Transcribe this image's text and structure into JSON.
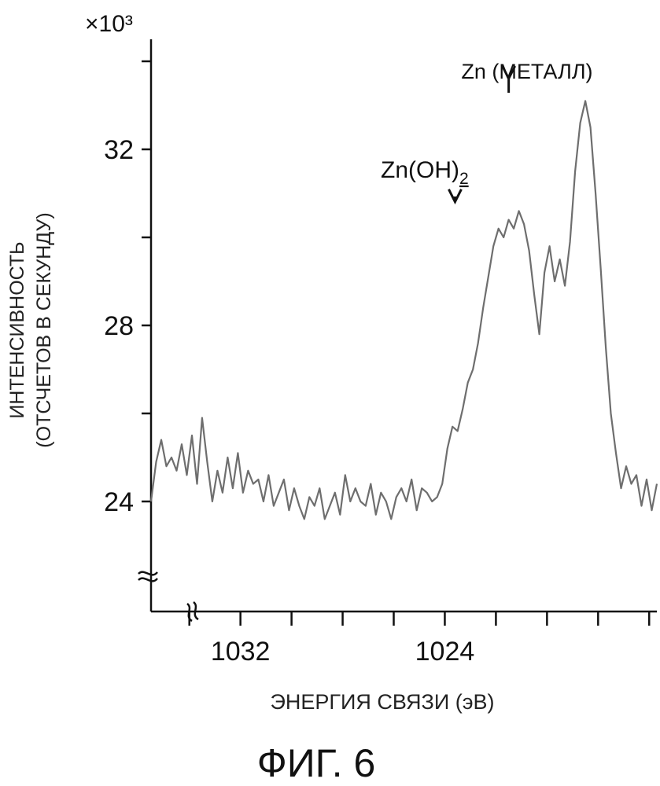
{
  "figure_label": "ФИГ. 6",
  "chart_data": {
    "type": "line",
    "xlabel": "ЭНЕРГИЯ СВЯЗИ (эВ)",
    "ylabel_line1": "ИНТЕНСИВНОСТЬ",
    "ylabel_line2": "(ОТСЧЕТОВ В СЕКУНДУ)",
    "y_multiplier": "×10³",
    "x_reversed": true,
    "xlim": [
      1035.5,
      1015.7
    ],
    "ylim": [
      21.5,
      34.5
    ],
    "x_ticks": [
      1034,
      1032,
      1030,
      1028,
      1026,
      1024,
      1022,
      1020,
      1018,
      1016
    ],
    "x_tick_labels": [
      {
        "value": 1032,
        "label": "1032"
      },
      {
        "value": 1024,
        "label": "1024"
      }
    ],
    "y_ticks": [
      24,
      26,
      28,
      30,
      32,
      34
    ],
    "y_tick_labels": [
      {
        "value": 32,
        "label": "32"
      },
      {
        "value": 28,
        "label": "28"
      },
      {
        "value": 24,
        "label": "24"
      }
    ],
    "axis_breaks": true,
    "grid": false,
    "annotations": [
      {
        "text_main": "Zn(OH)",
        "text_sub": "2",
        "x": 1023.6,
        "arrow_to_y": 30.7
      },
      {
        "text_main": "Zn (МЕТАЛЛ)",
        "text_sub": "",
        "x": 1021.5,
        "arrow_to_y": 33.5
      }
    ],
    "series": [
      {
        "color": "#6e6e6e",
        "points": [
          [
            1035.5,
            24.0
          ],
          [
            1035.3,
            24.9
          ],
          [
            1035.1,
            25.4
          ],
          [
            1034.9,
            24.8
          ],
          [
            1034.7,
            25.0
          ],
          [
            1034.5,
            24.7
          ],
          [
            1034.3,
            25.3
          ],
          [
            1034.1,
            24.6
          ],
          [
            1033.9,
            25.5
          ],
          [
            1033.7,
            24.4
          ],
          [
            1033.5,
            25.9
          ],
          [
            1033.3,
            24.9
          ],
          [
            1033.1,
            24.0
          ],
          [
            1032.9,
            24.7
          ],
          [
            1032.7,
            24.2
          ],
          [
            1032.5,
            25.0
          ],
          [
            1032.3,
            24.3
          ],
          [
            1032.1,
            25.1
          ],
          [
            1031.9,
            24.2
          ],
          [
            1031.7,
            24.7
          ],
          [
            1031.5,
            24.4
          ],
          [
            1031.3,
            24.5
          ],
          [
            1031.1,
            24.0
          ],
          [
            1030.9,
            24.6
          ],
          [
            1030.7,
            23.9
          ],
          [
            1030.5,
            24.2
          ],
          [
            1030.3,
            24.5
          ],
          [
            1030.1,
            23.8
          ],
          [
            1029.9,
            24.3
          ],
          [
            1029.7,
            23.9
          ],
          [
            1029.5,
            23.6
          ],
          [
            1029.3,
            24.1
          ],
          [
            1029.1,
            23.9
          ],
          [
            1028.9,
            24.3
          ],
          [
            1028.7,
            23.6
          ],
          [
            1028.5,
            23.9
          ],
          [
            1028.3,
            24.2
          ],
          [
            1028.1,
            23.7
          ],
          [
            1027.9,
            24.6
          ],
          [
            1027.7,
            24.0
          ],
          [
            1027.5,
            24.3
          ],
          [
            1027.3,
            24.0
          ],
          [
            1027.1,
            23.9
          ],
          [
            1026.9,
            24.4
          ],
          [
            1026.7,
            23.7
          ],
          [
            1026.5,
            24.2
          ],
          [
            1026.3,
            24.0
          ],
          [
            1026.1,
            23.6
          ],
          [
            1025.9,
            24.1
          ],
          [
            1025.7,
            24.3
          ],
          [
            1025.5,
            24.0
          ],
          [
            1025.3,
            24.5
          ],
          [
            1025.1,
            23.8
          ],
          [
            1024.9,
            24.3
          ],
          [
            1024.7,
            24.2
          ],
          [
            1024.5,
            24.0
          ],
          [
            1024.3,
            24.1
          ],
          [
            1024.1,
            24.4
          ],
          [
            1023.9,
            25.2
          ],
          [
            1023.7,
            25.7
          ],
          [
            1023.5,
            25.6
          ],
          [
            1023.3,
            26.1
          ],
          [
            1023.1,
            26.7
          ],
          [
            1022.9,
            27.0
          ],
          [
            1022.7,
            27.6
          ],
          [
            1022.5,
            28.4
          ],
          [
            1022.3,
            29.1
          ],
          [
            1022.1,
            29.8
          ],
          [
            1021.9,
            30.2
          ],
          [
            1021.7,
            30.0
          ],
          [
            1021.5,
            30.4
          ],
          [
            1021.3,
            30.2
          ],
          [
            1021.1,
            30.6
          ],
          [
            1020.9,
            30.3
          ],
          [
            1020.7,
            29.7
          ],
          [
            1020.5,
            28.7
          ],
          [
            1020.3,
            27.8
          ],
          [
            1020.1,
            29.2
          ],
          [
            1019.9,
            29.8
          ],
          [
            1019.7,
            29.0
          ],
          [
            1019.5,
            29.5
          ],
          [
            1019.3,
            28.9
          ],
          [
            1019.1,
            29.9
          ],
          [
            1018.9,
            31.5
          ],
          [
            1018.7,
            32.6
          ],
          [
            1018.5,
            33.1
          ],
          [
            1018.3,
            32.5
          ],
          [
            1018.1,
            31.0
          ],
          [
            1017.9,
            29.3
          ],
          [
            1017.7,
            27.5
          ],
          [
            1017.5,
            26.0
          ],
          [
            1017.3,
            25.1
          ],
          [
            1017.1,
            24.3
          ],
          [
            1016.9,
            24.8
          ],
          [
            1016.7,
            24.4
          ],
          [
            1016.5,
            24.6
          ],
          [
            1016.3,
            23.9
          ],
          [
            1016.1,
            24.5
          ],
          [
            1015.9,
            23.8
          ],
          [
            1015.7,
            24.4
          ]
        ]
      }
    ]
  }
}
